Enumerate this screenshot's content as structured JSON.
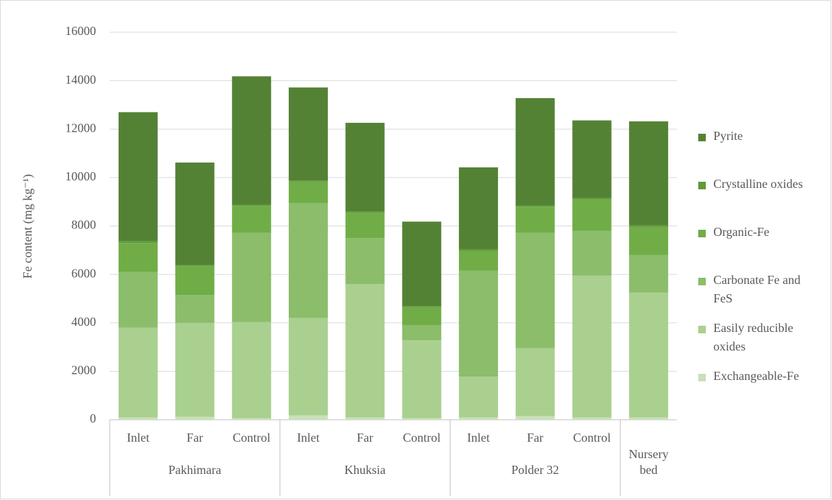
{
  "chart_data": {
    "type": "stacked-bar",
    "y_label": "Fe content (mg kg⁻¹)",
    "categories": [
      [
        "Inlet",
        "Pakhimara"
      ],
      [
        "Far",
        "Pakhimara"
      ],
      [
        "Control",
        "Pakhimara"
      ],
      [
        "Inlet",
        "Khuksia"
      ],
      [
        "Far",
        "Khuksia"
      ],
      [
        "Control",
        "Khuksia"
      ],
      [
        "Inlet",
        "Polder 32"
      ],
      [
        "Far",
        "Polder 32"
      ],
      [
        "Control",
        "Polder 32"
      ],
      [
        null,
        "Nursery bed"
      ]
    ],
    "series": [
      {
        "name": "Exchangeable-Fe",
        "color": "#c9e0b9",
        "values": [
          100,
          120,
          60,
          180,
          100,
          60,
          100,
          150,
          100,
          100
        ]
      },
      {
        "name": "Easily reducible oxides",
        "color": "#a9d08e",
        "values": [
          3700,
          3880,
          3970,
          4020,
          5500,
          3220,
          1680,
          2810,
          5850,
          5150
        ]
      },
      {
        "name": "Carbonate Fe and FeS",
        "color": "#8bbd6a",
        "values": [
          2300,
          1150,
          3690,
          4750,
          1900,
          620,
          4370,
          4760,
          1850,
          1550
        ]
      },
      {
        "name": "Organic-Fe",
        "color": "#70ad47",
        "values": [
          1200,
          1200,
          1110,
          880,
          1050,
          750,
          830,
          1080,
          1300,
          1170
        ]
      },
      {
        "name": "Crystalline oxides",
        "color": "#5e9a3a",
        "values": [
          80,
          50,
          50,
          50,
          50,
          50,
          50,
          50,
          60,
          50
        ]
      },
      {
        "name": "Pyrite",
        "color": "#548235",
        "values": [
          5320,
          4220,
          5300,
          3840,
          3660,
          3480,
          3390,
          4430,
          3200,
          4300
        ]
      }
    ],
    "ylim": [
      0,
      16000
    ],
    "yticks": [
      0,
      2000,
      4000,
      6000,
      8000,
      10000,
      12000,
      14000,
      16000
    ],
    "grid": true,
    "legend": "right"
  }
}
